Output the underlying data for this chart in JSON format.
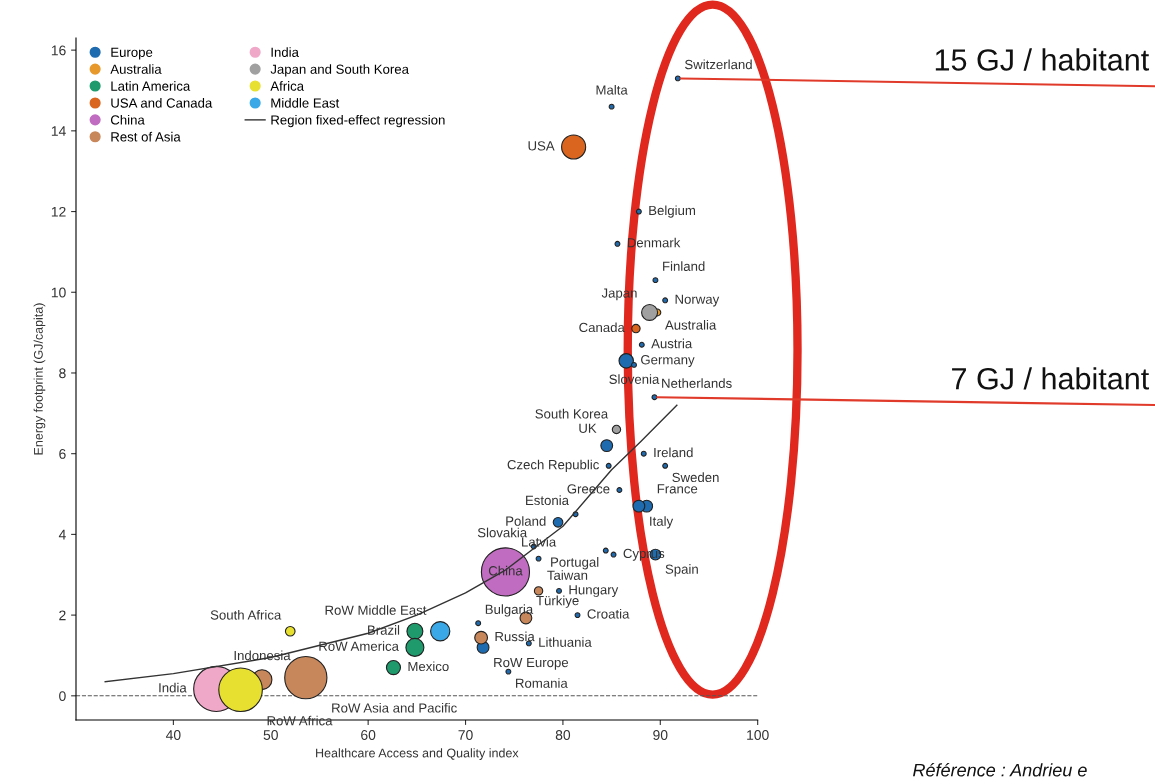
{
  "chart_data": {
    "type": "bubble",
    "xlabel": "Healthcare Access and Quality index",
    "ylabel": "Energy footprint (GJ/capita)",
    "xlim": [
      30,
      100
    ],
    "ylim": [
      -0.6,
      16.3
    ],
    "xticks": [
      40,
      50,
      60,
      70,
      80,
      90,
      100
    ],
    "yticks": [
      0,
      2,
      4,
      6,
      8,
      10,
      12,
      14,
      16
    ],
    "legend": "top left",
    "series": [
      {
        "name": "Europe",
        "color": "#1f6bb0",
        "x": [
          91.8,
          85.0,
          87.8,
          85.6,
          89.5,
          90.5,
          88.1,
          86.5,
          87.3,
          89.4,
          84.5,
          88.3,
          90.5,
          84.7,
          85.8,
          88.6,
          87.8,
          81.3,
          79.5,
          77.0,
          77.5,
          84.4,
          85.2,
          89.5,
          79.6,
          81.5,
          76.5,
          71.3,
          71.8,
          74.4
        ],
        "values": [
          15.3,
          14.6,
          12.0,
          11.2,
          10.3,
          9.8,
          8.7,
          8.3,
          8.2,
          7.4,
          6.2,
          6.0,
          5.7,
          5.7,
          5.1,
          4.7,
          4.7,
          4.5,
          4.3,
          3.7,
          3.4,
          3.6,
          3.5,
          3.5,
          2.6,
          2.0,
          1.3,
          1.8,
          1.2,
          0.6
        ],
        "sizes": [
          0.01,
          0.01,
          0.01,
          0.01,
          0.01,
          0.01,
          0.01,
          0.09,
          0.01,
          0.01,
          0.06,
          0.01,
          0.01,
          0.01,
          0.01,
          0.06,
          0.06,
          0.01,
          0.04,
          0.01,
          0.01,
          0.01,
          0.01,
          0.05,
          0.01,
          0.01,
          0.01,
          0.01,
          0.06,
          0.01
        ],
        "value_labels": [
          "Switzerland",
          "Malta",
          "Belgium",
          "Denmark",
          "Finland",
          "Norway",
          "Austria",
          "Germany",
          "Slovenia",
          "Netherlands",
          "UK",
          "Ireland",
          "Sweden",
          "Czech Republic",
          "Greece",
          "France",
          "Italy",
          "Estonia",
          "Poland",
          "Slovakia",
          "Latvia",
          "Portugal",
          "Cyprus",
          "Spain",
          "Hungary",
          "Croatia",
          "Lithuania",
          "Bulgaria",
          "RoW Europe",
          "Romania"
        ]
      },
      {
        "name": "Australia",
        "color": "#e8992c",
        "x": [
          89.7
        ],
        "values": [
          9.5
        ],
        "sizes": [
          0.02
        ],
        "value_labels": [
          "Australia"
        ]
      },
      {
        "name": "Latin America",
        "color": "#1e9a6c",
        "x": [
          64.8,
          64.8,
          62.6
        ],
        "values": [
          1.6,
          1.2,
          0.7
        ],
        "sizes": [
          0.11,
          0.14,
          0.085
        ],
        "value_labels": [
          "Brazil",
          "RoW America",
          "Mexico"
        ]
      },
      {
        "name": "USA and Canada",
        "color": "#d9651f",
        "x": [
          81.1,
          87.5
        ],
        "values": [
          13.6,
          9.1
        ],
        "sizes": [
          0.25,
          0.03
        ],
        "value_labels": [
          "USA",
          "Canada"
        ]
      },
      {
        "name": "China",
        "color": "#c06cc0",
        "x": [
          74.1
        ],
        "values": [
          3.07
        ],
        "sizes": [
          1
        ],
        "value_labels": [
          "China"
        ]
      },
      {
        "name": "Rest of Asia",
        "color": "#c8875a",
        "x": [
          77.5,
          76.2,
          71.6,
          53.6,
          49.1
        ],
        "values": [
          2.6,
          1.93,
          1.44,
          0.45,
          0.4
        ],
        "sizes": [
          0.03,
          0.06,
          0.07,
          0.77,
          0.17
        ],
        "value_labels": [
          "Taiwan",
          "Türkiye",
          "Russia",
          "RoW Asia and Pacific",
          "Indonesia"
        ]
      },
      {
        "name": "India",
        "color": "#f0a8c8",
        "x": [
          44.4
        ],
        "values": [
          0.17
        ],
        "sizes": [
          0.88
        ],
        "value_labels": [
          "India"
        ]
      },
      {
        "name": "Japan and South Korea",
        "color": "#a0a0a0",
        "x": [
          88.9,
          85.5
        ],
        "values": [
          9.5,
          6.6
        ],
        "sizes": [
          0.11,
          0.03
        ],
        "value_labels": [
          "Japan",
          "South Korea"
        ]
      },
      {
        "name": "Africa",
        "color": "#e8e030",
        "x": [
          52.0,
          46.9
        ],
        "values": [
          1.6,
          0.15
        ],
        "sizes": [
          0.04,
          0.82
        ],
        "value_labels": [
          "South Africa",
          "RoW Africa"
        ]
      },
      {
        "name": "Middle East",
        "color": "#3aa8e6",
        "x": [
          67.4
        ],
        "values": [
          1.6
        ],
        "sizes": [
          0.16
        ],
        "value_labels": [
          "RoW Middle East"
        ]
      },
      {
        "name": "Region fixed-effect regression",
        "type": "line",
        "color": "#333333",
        "x": [
          33.0,
          40,
          50,
          60,
          65,
          70,
          74,
          80,
          85,
          88,
          91.7
        ],
        "values": [
          0.35,
          0.55,
          0.95,
          1.55,
          2.0,
          2.55,
          3.1,
          4.2,
          5.6,
          6.3,
          7.2
        ]
      }
    ],
    "ref_lines": [
      {
        "axis": "y",
        "value": 0,
        "color": "#555555",
        "line_style": "dashed"
      }
    ],
    "annotations": [
      {
        "text": "15 GJ / habitant",
        "x": 91.8,
        "y": 15.3
      },
      {
        "text": "7 GJ / habitant",
        "x": 89.4,
        "y": 7.4
      },
      "Référence : Andrieu e"
    ]
  }
}
